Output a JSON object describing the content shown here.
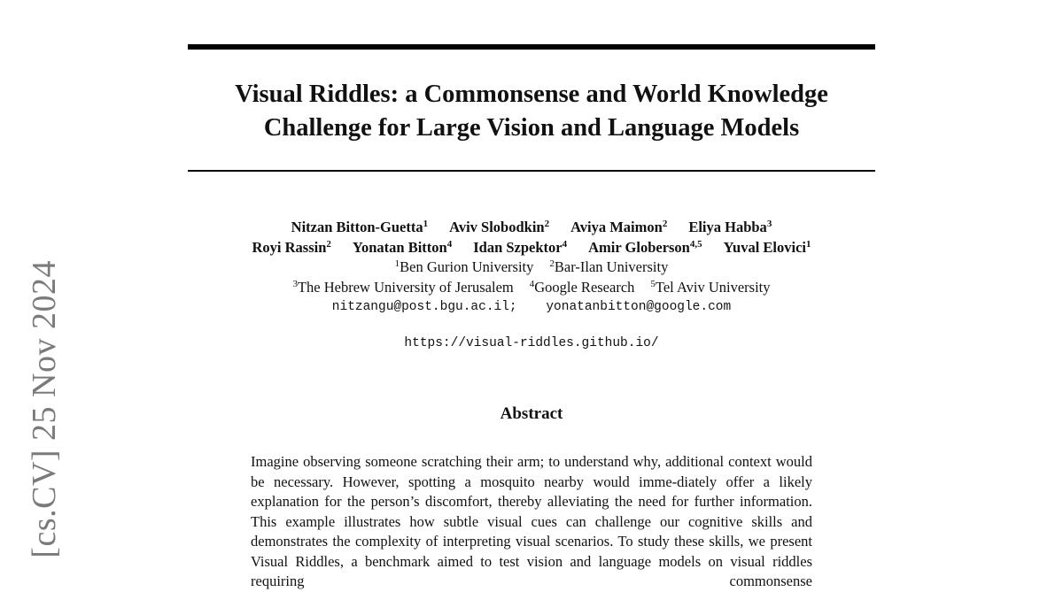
{
  "arxiv_stamp": "[cs.CV]  25 Nov 2024",
  "title": {
    "line1": "Visual Riddles: a Commonsense and World Knowledge",
    "line2": "Challenge for Large Vision and Language Models"
  },
  "authors_row1": [
    {
      "name": "Nitzan Bitton-Guetta",
      "aff": "1"
    },
    {
      "name": "Aviv Slobodkin",
      "aff": "2"
    },
    {
      "name": "Aviya Maimon",
      "aff": "2"
    },
    {
      "name": "Eliya Habba",
      "aff": "3"
    }
  ],
  "authors_row2": [
    {
      "name": "Royi Rassin",
      "aff": "2"
    },
    {
      "name": "Yonatan Bitton",
      "aff": "4"
    },
    {
      "name": "Idan Szpektor",
      "aff": "4"
    },
    {
      "name": "Amir Globerson",
      "aff": "4,5"
    },
    {
      "name": "Yuval Elovici",
      "aff": "1"
    }
  ],
  "affiliations_row1": [
    {
      "num": "1",
      "name": "Ben Gurion University"
    },
    {
      "num": "2",
      "name": "Bar-Ilan University"
    }
  ],
  "affiliations_row2": [
    {
      "num": "3",
      "name": "The Hebrew University of Jerusalem"
    },
    {
      "num": "4",
      "name": "Google Research"
    },
    {
      "num": "5",
      "name": "Tel Aviv University"
    }
  ],
  "emails": [
    "nitzangu@post.bgu.ac.il;",
    "yonatanbitton@google.com"
  ],
  "url": "https://visual-riddles.github.io/",
  "abstract": {
    "heading": "Abstract",
    "text": "Imagine observing someone scratching their arm; to understand why, additional context would be necessary. However, spotting a mosquito nearby would imme-diately offer a likely explanation for the person’s discomfort, thereby alleviating the need for further information. This example illustrates how subtle visual cues can challenge our cognitive skills and demonstrates the complexity of interpreting visual scenarios. To study these skills, we present Visual Riddles, a benchmark aimed to test vision and language models on visual riddles requiring commonsense"
  }
}
